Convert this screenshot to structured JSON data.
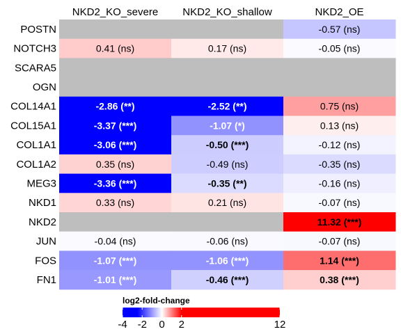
{
  "chart_data": {
    "type": "heatmap",
    "columns": [
      "NKD2_KO_severe",
      "NKD2_KO_shallow",
      "NKD2_OE"
    ],
    "rows": [
      "POSTN",
      "NOTCH3",
      "SCARA5",
      "OGN",
      "COL14A1",
      "COL15A1",
      "COL1A1",
      "COL1A2",
      "MEG3",
      "NKD1",
      "NKD2",
      "JUN",
      "FOS",
      "FN1"
    ],
    "values": [
      [
        null,
        null,
        -0.57
      ],
      [
        0.41,
        0.17,
        -0.05
      ],
      [
        null,
        null,
        null
      ],
      [
        null,
        null,
        null
      ],
      [
        -2.86,
        -2.52,
        0.75
      ],
      [
        -3.37,
        -1.07,
        0.13
      ],
      [
        -3.06,
        -0.5,
        -0.12
      ],
      [
        0.35,
        -0.49,
        -0.35
      ],
      [
        -3.36,
        -0.35,
        -0.16
      ],
      [
        0.33,
        0.21,
        -0.07
      ],
      [
        null,
        null,
        11.32
      ],
      [
        -0.04,
        -0.06,
        -0.07
      ],
      [
        -1.07,
        -1.06,
        1.14
      ],
      [
        -1.01,
        -0.46,
        0.38
      ]
    ],
    "labels": [
      [
        null,
        null,
        "-0.57 (ns)"
      ],
      [
        "0.41 (ns)",
        "0.17 (ns)",
        "-0.05 (ns)"
      ],
      [
        null,
        null,
        null
      ],
      [
        null,
        null,
        null
      ],
      [
        "-2.86 (**)",
        "-2.52 (**)",
        "0.75 (ns)"
      ],
      [
        "-3.37 (***)",
        "-1.07 (*)",
        "0.13 (ns)"
      ],
      [
        "-3.06 (***)",
        "-0.50 (***)",
        "-0.12 (ns)"
      ],
      [
        "0.35 (ns)",
        "-0.49 (ns)",
        "-0.35 (ns)"
      ],
      [
        "-3.36 (***)",
        "-0.35 (**)",
        "-0.16 (ns)"
      ],
      [
        "0.33 (ns)",
        "0.21 (ns)",
        "-0.07 (ns)"
      ],
      [
        null,
        null,
        "11.32 (***)"
      ],
      [
        "-0.04 (ns)",
        "-0.06 (ns)",
        "-0.07 (ns)"
      ],
      [
        "-1.07 (***)",
        "-1.06 (***)",
        "1.14 (***)"
      ],
      [
        "-1.01 (***)",
        "-0.46 (***)",
        "0.38 (***)"
      ]
    ],
    "legend": {
      "title": "log2-fold-change",
      "min": -4,
      "max": 12,
      "ticks": [
        -4,
        -2,
        0,
        2,
        12
      ],
      "tick_labels": [
        "-4",
        "-2",
        "0",
        "2",
        "12"
      ]
    },
    "colors": {
      "negative": "#0000ff",
      "zero": "#ffffff",
      "positive": "#ff0000",
      "missing": "#bebebe"
    }
  }
}
